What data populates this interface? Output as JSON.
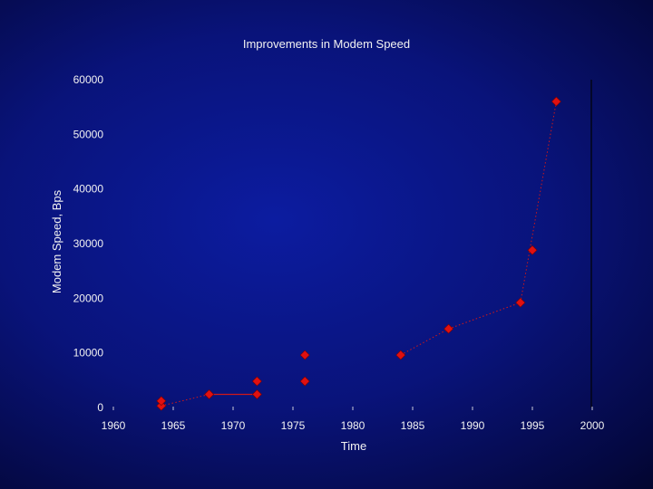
{
  "chart_data": {
    "type": "scatter",
    "title": "Improvements in Modem Speed",
    "xlabel": "Time",
    "ylabel": "Modem Speed, Bps",
    "xlim": [
      1960,
      2000
    ],
    "ylim": [
      0,
      60000
    ],
    "x_ticks": [
      "1960",
      "1965",
      "1970",
      "1975",
      "1980",
      "1985",
      "1990",
      "1995",
      "2000"
    ],
    "y_ticks": [
      "0",
      "10000",
      "20000",
      "30000",
      "40000",
      "50000",
      "60000"
    ],
    "grid": false,
    "legend": "none",
    "series": [
      {
        "marker": "diamond",
        "color": "#e01010",
        "points": [
          {
            "x": 1964,
            "y": 300
          },
          {
            "x": 1964,
            "y": 1200
          },
          {
            "x": 1968,
            "y": 2400
          },
          {
            "x": 1972,
            "y": 2400
          },
          {
            "x": 1972,
            "y": 4800
          },
          {
            "x": 1976,
            "y": 4800
          },
          {
            "x": 1976,
            "y": 9600
          },
          {
            "x": 1984,
            "y": 9600
          },
          {
            "x": 1988,
            "y": 14400
          },
          {
            "x": 1994,
            "y": 19200
          },
          {
            "x": 1995,
            "y": 28800
          },
          {
            "x": 1997,
            "y": 56000
          }
        ]
      }
    ],
    "trend_segments": [
      {
        "style": "dotted",
        "from": {
          "x": 1964,
          "y": 300
        },
        "to": {
          "x": 1968,
          "y": 2400
        }
      },
      {
        "style": "solid",
        "from": {
          "x": 1968,
          "y": 2400
        },
        "to": {
          "x": 1972,
          "y": 2400
        }
      },
      {
        "style": "dotted",
        "from": {
          "x": 1984,
          "y": 9600
        },
        "to": {
          "x": 1988,
          "y": 14400
        }
      },
      {
        "style": "dotted",
        "from": {
          "x": 1988,
          "y": 14400
        },
        "to": {
          "x": 1994,
          "y": 19200
        }
      },
      {
        "style": "dotted",
        "from": {
          "x": 1994,
          "y": 19200
        },
        "to": {
          "x": 1997,
          "y": 56000
        }
      }
    ]
  }
}
